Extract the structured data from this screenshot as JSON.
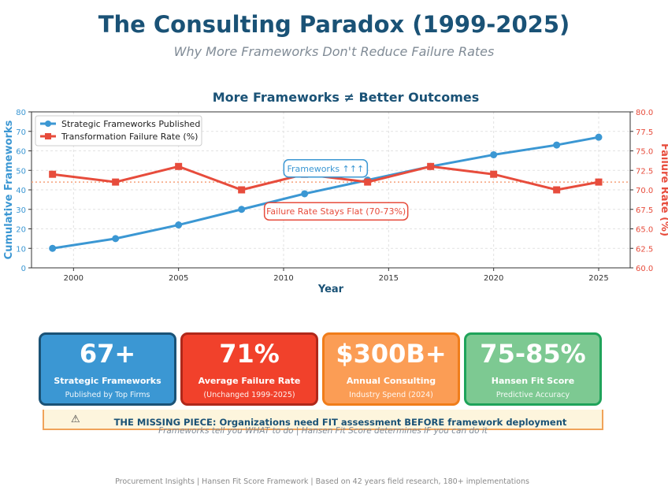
{
  "header": {
    "title": "The Consulting Paradox (1999-2025)",
    "subtitle": "Why More Frameworks Don't Reduce Failure Rates"
  },
  "chart_data": {
    "type": "line",
    "title": "More Frameworks ≠ Better Outcomes",
    "xlabel": "Year",
    "ylabel_left": "Cumulative Frameworks",
    "ylabel_right": "Failure Rate (%)",
    "xlim": [
      1998,
      2026.5
    ],
    "ylim_left": [
      0,
      80
    ],
    "ylim_right": [
      60,
      80
    ],
    "xticks": [
      "2000",
      "2005",
      "2010",
      "2015",
      "2020",
      "2025"
    ],
    "yticks_left": [
      "0",
      "10",
      "20",
      "30",
      "40",
      "50",
      "60",
      "70",
      "80"
    ],
    "yticks_right": [
      "60.0",
      "62.5",
      "65.0",
      "67.5",
      "70.0",
      "72.5",
      "75.0",
      "77.5",
      "80.0"
    ],
    "grid": true,
    "legend_position": "top-left",
    "series": [
      {
        "name": "Strategic Frameworks Published",
        "axis": "left",
        "color": "#3b97d3",
        "marker": "circle",
        "x": [
          1999,
          2002,
          2005,
          2008,
          2011,
          2014,
          2017,
          2020,
          2023,
          2025
        ],
        "values": [
          10,
          15,
          22,
          30,
          38,
          45,
          52,
          58,
          63,
          67
        ]
      },
      {
        "name": "Transformation Failure Rate (%)",
        "axis": "right",
        "color": "#e74c3c",
        "marker": "square",
        "x": [
          1999,
          2002,
          2005,
          2008,
          2011,
          2014,
          2017,
          2020,
          2023,
          2025
        ],
        "values": [
          72,
          71,
          73,
          70,
          72,
          71,
          73,
          72,
          70,
          71
        ]
      }
    ],
    "reference_line": {
      "axis": "right",
      "value": 71,
      "color": "#f5a07a"
    },
    "annotations": [
      {
        "text": "Frameworks ↑↑↑",
        "x": 2012,
        "y_left": 51,
        "color": "#3b97d3"
      },
      {
        "text": "Failure Rate Stays Flat (70-73%)",
        "x": 2012.5,
        "y_left": 29,
        "color": "#e74c3c"
      }
    ]
  },
  "cards": [
    {
      "value": "67+",
      "label": "Strategic Frameworks",
      "sub": "Published by Top Firms",
      "bg": "#3b97d3",
      "border": "#1a5276"
    },
    {
      "value": "71%",
      "label": "Average Failure Rate",
      "sub": "(Unchanged 1999-2025)",
      "bg": "#f1412b",
      "border": "#b0281a"
    },
    {
      "value": "$300B+",
      "label": "Annual Consulting",
      "sub": "Industry Spend (2024)",
      "bg": "#fb9d55",
      "border": "#f07d1a"
    },
    {
      "value": "75-85%",
      "label": "Hansen Fit Score",
      "sub": "Predictive Accuracy",
      "bg": "#7dc992",
      "border": "#1fa35a"
    }
  ],
  "banner": {
    "icon": "warning-icon",
    "main": "THE MISSING PIECE: Organizations need FIT assessment BEFORE framework deployment",
    "sub": "Frameworks tell you WHAT to do  |  Hansen Fit Score determines IF you can do it"
  },
  "footer": "Procurement Insights | Hansen Fit Score Framework | Based on 42 years field research, 180+ implementations"
}
